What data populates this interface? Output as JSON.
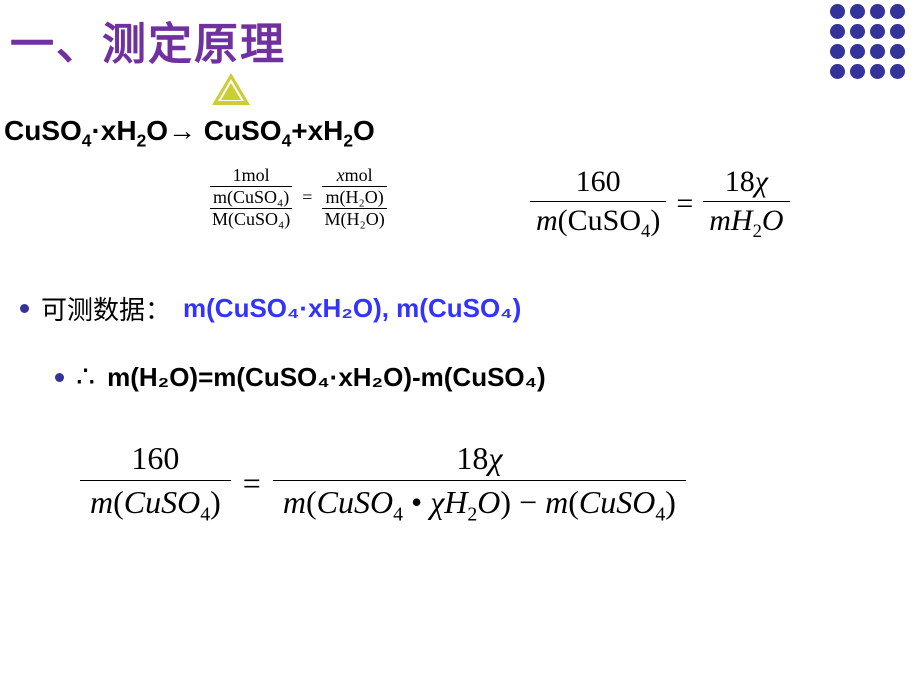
{
  "title": "一、测定原理",
  "decor": {
    "dot_color": "#333399",
    "dot_rows": 4,
    "dot_cols": 4,
    "triangle_color": "#cccc33"
  },
  "reaction": {
    "lhs_compound": "CuSO",
    "lhs_sub": "4",
    "lhs_hydrate": "·xH",
    "lhs_h2o_sub": "2",
    "lhs_o": "O",
    "arrow": "→",
    "rhs_compound": "CuSO",
    "rhs_sub": "4",
    "plus": "+xH",
    "rhs_h2o_sub": "2",
    "rhs_o": "O"
  },
  "small_ratio": {
    "left_num": "1mol",
    "left_mid": "m(CuSO₄)",
    "left_den": "M(CuSO₄)",
    "eq": "=",
    "right_num_var": "x",
    "right_num_unit": "mol",
    "right_mid": "m(H₂O)",
    "right_den": "M(H₂O)"
  },
  "big_ratio": {
    "left_num": "160",
    "left_den_m": "m",
    "left_den_text": "(CuSO",
    "left_den_sub": "4",
    "left_den_close": ")",
    "eq": "=",
    "right_num_coef": "18",
    "right_num_var": "χ",
    "right_den_m": "mH",
    "right_den_sub": "2",
    "right_den_o": "O"
  },
  "measurable": {
    "label": "可测数据：",
    "data": "m(CuSO₄·xH₂O), m(CuSO₄)"
  },
  "therefore": {
    "symbol": "∴",
    "text": "m(H₂O)=m(CuSO₄·xH₂O)-m(CuSO₄)"
  },
  "final": {
    "left_num": "160",
    "left_den": "m(CuSO₄)",
    "eq": "=",
    "right_num": "18χ",
    "right_den": "m(CuSO₄ • χH₂O) − m(CuSO₄)"
  }
}
